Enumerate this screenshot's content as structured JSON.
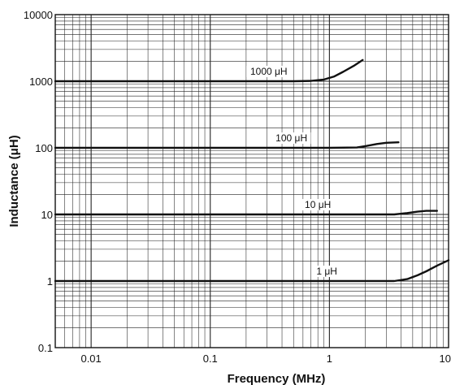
{
  "chart_data": {
    "type": "line",
    "xlabel": "Frequency (MHz)",
    "ylabel": "Inductance (μH)",
    "x_scale": "log",
    "y_scale": "log",
    "xlim": [
      0.005,
      10
    ],
    "ylim": [
      0.1,
      10000
    ],
    "x_ticks": [
      {
        "value": 0.01,
        "label": "0.01"
      },
      {
        "value": 0.1,
        "label": "0.1"
      },
      {
        "value": 1,
        "label": "1"
      },
      {
        "value": 10,
        "label": "10"
      }
    ],
    "y_ticks": [
      {
        "value": 0.1,
        "label": "0.1"
      },
      {
        "value": 1,
        "label": "1"
      },
      {
        "value": 10,
        "label": "10"
      },
      {
        "value": 100,
        "label": "100"
      },
      {
        "value": 1000,
        "label": "1000"
      },
      {
        "value": 10000,
        "label": "10000"
      }
    ],
    "grid": true,
    "series": [
      {
        "name": "1000 μH",
        "color": "#111111",
        "x": [
          0.005,
          0.1,
          0.5,
          0.7,
          0.9,
          1.1,
          1.3,
          1.6,
          1.9
        ],
        "y": [
          1000,
          1000,
          1000,
          1010,
          1060,
          1180,
          1380,
          1700,
          2080
        ]
      },
      {
        "name": "100 μH",
        "color": "#111111",
        "x": [
          0.005,
          0.1,
          1.0,
          1.7,
          2.0,
          2.5,
          3.0,
          3.8
        ],
        "y": [
          100,
          100,
          100,
          101,
          106,
          114,
          119,
          121
        ]
      },
      {
        "name": "10 μH",
        "color": "#111111",
        "x": [
          0.005,
          0.1,
          1.0,
          3.5,
          4.5,
          5.5,
          6.5,
          8.0
        ],
        "y": [
          10,
          10,
          10,
          10,
          10.5,
          11,
          11.3,
          11.3
        ]
      },
      {
        "name": "1 μH",
        "color": "#111111",
        "x": [
          0.005,
          0.1,
          1.0,
          3.5,
          4.5,
          5.5,
          6.5,
          8.0,
          10.0
        ],
        "y": [
          1,
          1,
          1,
          1,
          1.07,
          1.22,
          1.4,
          1.7,
          2.05
        ]
      }
    ],
    "curve_labels": [
      {
        "text": "1000 μH",
        "x": 0.31,
        "y": 1250
      },
      {
        "text": "100 μH",
        "x": 0.48,
        "y": 125
      },
      {
        "text": "10 μH",
        "x": 0.8,
        "y": 12.5
      },
      {
        "text": "1 μH",
        "x": 0.95,
        "y": 1.25
      }
    ]
  }
}
